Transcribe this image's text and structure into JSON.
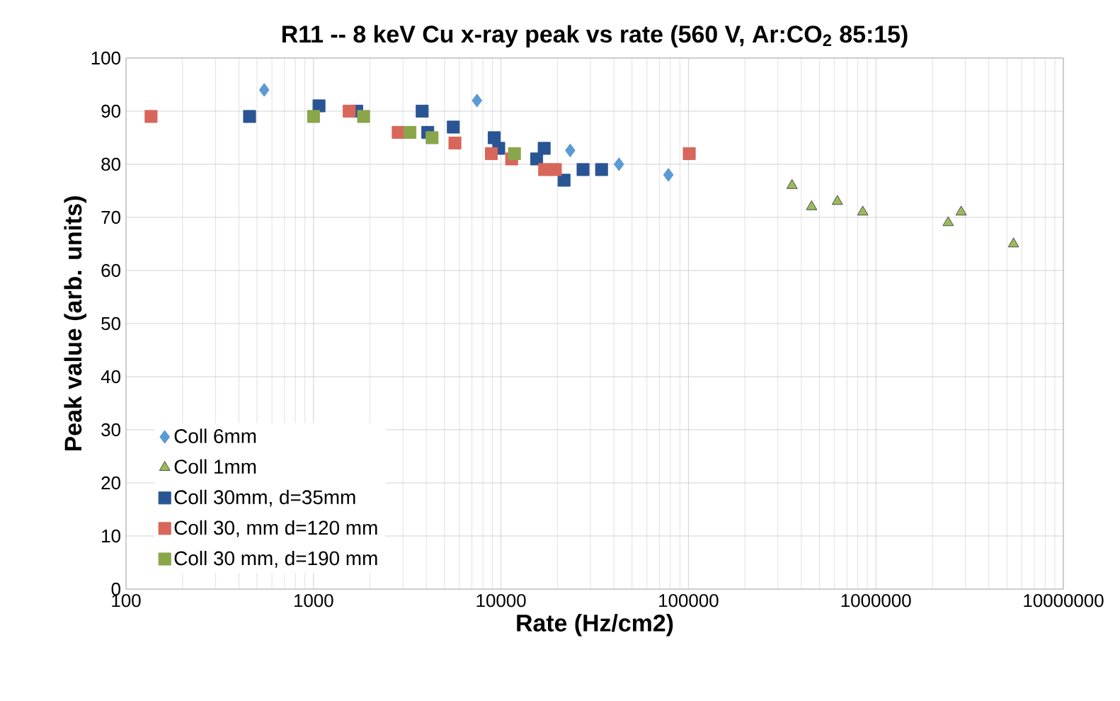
{
  "chart_data": {
    "type": "scatter",
    "title": "R11 -- 8 keV Cu x-ray peak vs rate (560 V,  Ar:CO$_{2}$ 85:15)",
    "xlabel": "Rate (Hz/cm2)",
    "ylabel": "Peak value (arb. units)",
    "log": "x",
    "grid": true,
    "legend": "bottom left",
    "xlim": [
      100,
      10000000
    ],
    "xticks": [
      100,
      1000,
      10000,
      100000,
      1000000,
      10000000
    ],
    "ylim": [
      0,
      100
    ],
    "yticks": [
      0,
      10,
      20,
      30,
      40,
      50,
      60,
      70,
      80,
      90,
      100
    ],
    "series": [
      {
        "name": "Coll 6mm",
        "color": "#5b9bd5",
        "marker": "diamond",
        "x": [
          546,
          7450,
          23400,
          42600,
          78200
        ],
        "values": [
          94,
          92,
          82.6,
          80,
          78
        ]
      },
      {
        "name": "Coll 1mm",
        "color": "#9bbb59",
        "marker": "triangle",
        "x": [
          357000,
          454000,
          623000,
          851000,
          2430000,
          2850000,
          5420000
        ],
        "values": [
          76,
          72,
          73,
          71,
          69,
          71,
          65
        ]
      },
      {
        "name": "Coll 30mm, d=35mm",
        "color": "#2a5594",
        "marker": "square",
        "x": [
          456,
          1070,
          1700,
          3800,
          4070,
          5570,
          9200,
          9730,
          15500,
          17000,
          21700,
          27400,
          34400
        ],
        "values": [
          89,
          91,
          90,
          90,
          86,
          87,
          85,
          83,
          81,
          83,
          77,
          79,
          79
        ]
      },
      {
        "name": "Coll 30, mm d=120 mm",
        "color": "#d9665b",
        "marker": "square",
        "x": [
          136,
          1550,
          2830,
          5680,
          8890,
          11400,
          17100,
          19500,
          101000
        ],
        "values": [
          89,
          90,
          86,
          84,
          82,
          81,
          79,
          79,
          82
        ]
      },
      {
        "name": "Coll 30 mm, d=190 mm",
        "color": "#8aa64a",
        "marker": "square",
        "x": [
          1000,
          1850,
          3270,
          4290,
          11800
        ],
        "values": [
          89,
          89,
          86,
          85,
          82
        ]
      }
    ]
  }
}
